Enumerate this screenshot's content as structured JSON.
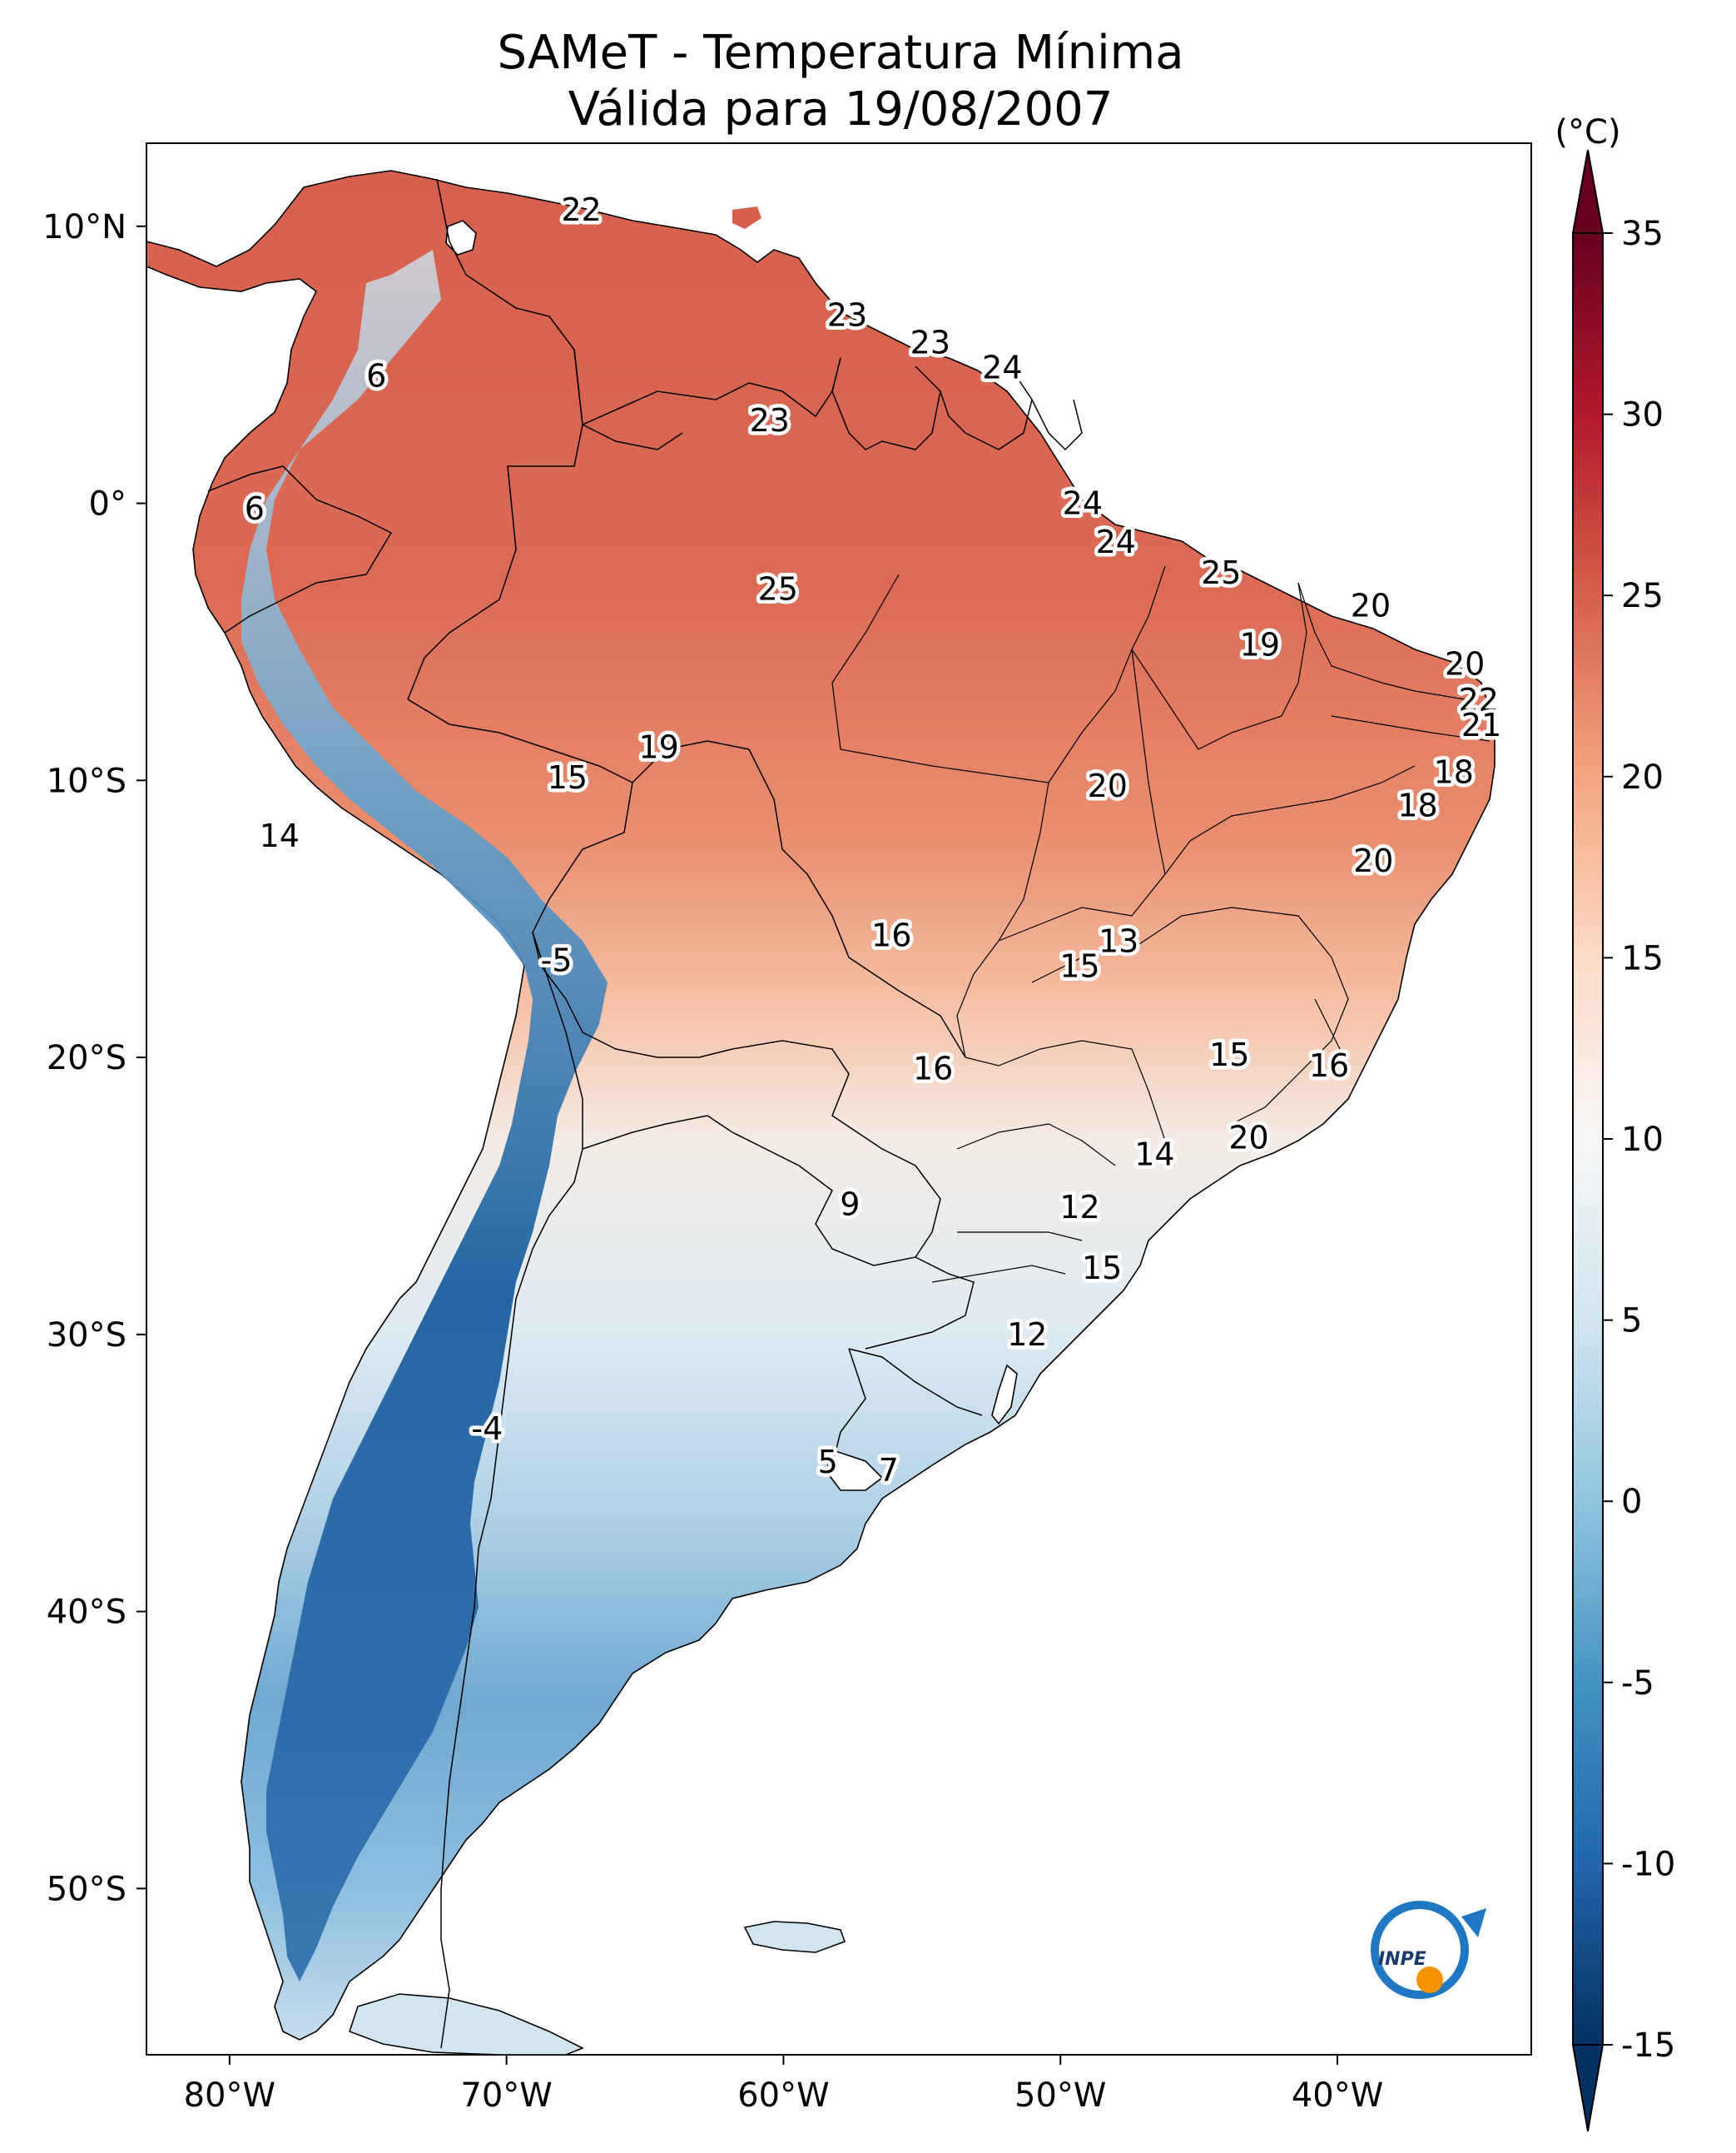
{
  "title": {
    "line1": "SAMeT - Temperatura Mínima",
    "line2": "Válida para 19/08/2007"
  },
  "map": {
    "lon_range": [
      -83.0,
      -33.0
    ],
    "lat_range": [
      -56.0,
      13.0
    ],
    "lon_ticks": [
      {
        "value": -80,
        "label": "80°W"
      },
      {
        "value": -70,
        "label": "70°W"
      },
      {
        "value": -60,
        "label": "60°W"
      },
      {
        "value": -50,
        "label": "50°W"
      },
      {
        "value": -40,
        "label": "40°W"
      }
    ],
    "lat_ticks": [
      {
        "value": 10,
        "label": "10°N"
      },
      {
        "value": 0,
        "label": "0°"
      },
      {
        "value": -10,
        "label": "10°S"
      },
      {
        "value": -20,
        "label": "20°S"
      },
      {
        "value": -30,
        "label": "30°S"
      },
      {
        "value": -40,
        "label": "40°S"
      },
      {
        "value": -50,
        "label": "50°S"
      }
    ],
    "point_values": [
      {
        "lon": -67.3,
        "lat": 10.6,
        "label": "22"
      },
      {
        "lon": -74.7,
        "lat": 4.6,
        "label": "6"
      },
      {
        "lon": -79.1,
        "lat": -0.2,
        "label": "6"
      },
      {
        "lon": -57.7,
        "lat": 6.8,
        "label": "23"
      },
      {
        "lon": -54.7,
        "lat": 5.8,
        "label": "23"
      },
      {
        "lon": -52.1,
        "lat": 4.9,
        "label": "24"
      },
      {
        "lon": -60.5,
        "lat": 3.0,
        "label": "23"
      },
      {
        "lon": -49.2,
        "lat": 0.0,
        "label": "24"
      },
      {
        "lon": -48.0,
        "lat": -1.4,
        "label": "24"
      },
      {
        "lon": -60.2,
        "lat": -3.1,
        "label": "25"
      },
      {
        "lon": -44.2,
        "lat": -2.5,
        "label": "25"
      },
      {
        "lon": -38.8,
        "lat": -3.7,
        "label": "20"
      },
      {
        "lon": -42.8,
        "lat": -5.1,
        "label": "19"
      },
      {
        "lon": -35.4,
        "lat": -5.8,
        "label": "20"
      },
      {
        "lon": -34.9,
        "lat": -7.1,
        "label": "22"
      },
      {
        "lon": -34.8,
        "lat": -8.0,
        "label": "21"
      },
      {
        "lon": -35.8,
        "lat": -9.7,
        "label": "18"
      },
      {
        "lon": -37.1,
        "lat": -10.9,
        "label": "18"
      },
      {
        "lon": -64.5,
        "lat": -8.8,
        "label": "19"
      },
      {
        "lon": -67.8,
        "lat": -9.9,
        "label": "15"
      },
      {
        "lon": -48.3,
        "lat": -10.2,
        "label": "20"
      },
      {
        "lon": -78.2,
        "lat": -12.0,
        "label": "14"
      },
      {
        "lon": -38.7,
        "lat": -12.9,
        "label": "20"
      },
      {
        "lon": -56.1,
        "lat": -15.6,
        "label": "16"
      },
      {
        "lon": -47.9,
        "lat": -15.8,
        "label": "13"
      },
      {
        "lon": -49.3,
        "lat": -16.7,
        "label": "15"
      },
      {
        "lon": -68.2,
        "lat": -16.5,
        "label": "-5"
      },
      {
        "lon": -43.9,
        "lat": -19.9,
        "label": "15"
      },
      {
        "lon": -40.3,
        "lat": -20.3,
        "label": "16"
      },
      {
        "lon": -54.6,
        "lat": -20.4,
        "label": "16"
      },
      {
        "lon": -43.2,
        "lat": -22.9,
        "label": "20"
      },
      {
        "lon": -46.6,
        "lat": -23.5,
        "label": "14"
      },
      {
        "lon": -57.6,
        "lat": -25.3,
        "label": "9"
      },
      {
        "lon": -49.3,
        "lat": -25.4,
        "label": "12"
      },
      {
        "lon": -48.5,
        "lat": -27.6,
        "label": "15"
      },
      {
        "lon": -51.2,
        "lat": -30.0,
        "label": "12"
      },
      {
        "lon": -70.7,
        "lat": -33.4,
        "label": "-4"
      },
      {
        "lon": -58.4,
        "lat": -34.6,
        "label": "5"
      },
      {
        "lon": -56.2,
        "lat": -34.9,
        "label": "7"
      }
    ]
  },
  "colorbar": {
    "unit": "(°C)",
    "range": [
      -17.5,
      37.5
    ],
    "ticks": [
      {
        "value": 35,
        "label": "35"
      },
      {
        "value": 30,
        "label": "30"
      },
      {
        "value": 25,
        "label": "25"
      },
      {
        "value": 20,
        "label": "20"
      },
      {
        "value": 15,
        "label": "15"
      },
      {
        "value": 10,
        "label": "10"
      },
      {
        "value": 5,
        "label": "5"
      },
      {
        "value": 0,
        "label": "0"
      },
      {
        "value": -5,
        "label": "-5"
      },
      {
        "value": -10,
        "label": "-10"
      },
      {
        "value": -15,
        "label": "-15"
      }
    ],
    "colors": [
      "#053061",
      "#2166ac",
      "#4393c3",
      "#92c5de",
      "#d1e5f0",
      "#f7f7f7",
      "#fddbc7",
      "#f4a582",
      "#d6604d",
      "#b2182b",
      "#67001f"
    ]
  },
  "logo": {
    "text": "INPE",
    "ring_color": "#1f78c1",
    "dot_color": "#f39200"
  }
}
